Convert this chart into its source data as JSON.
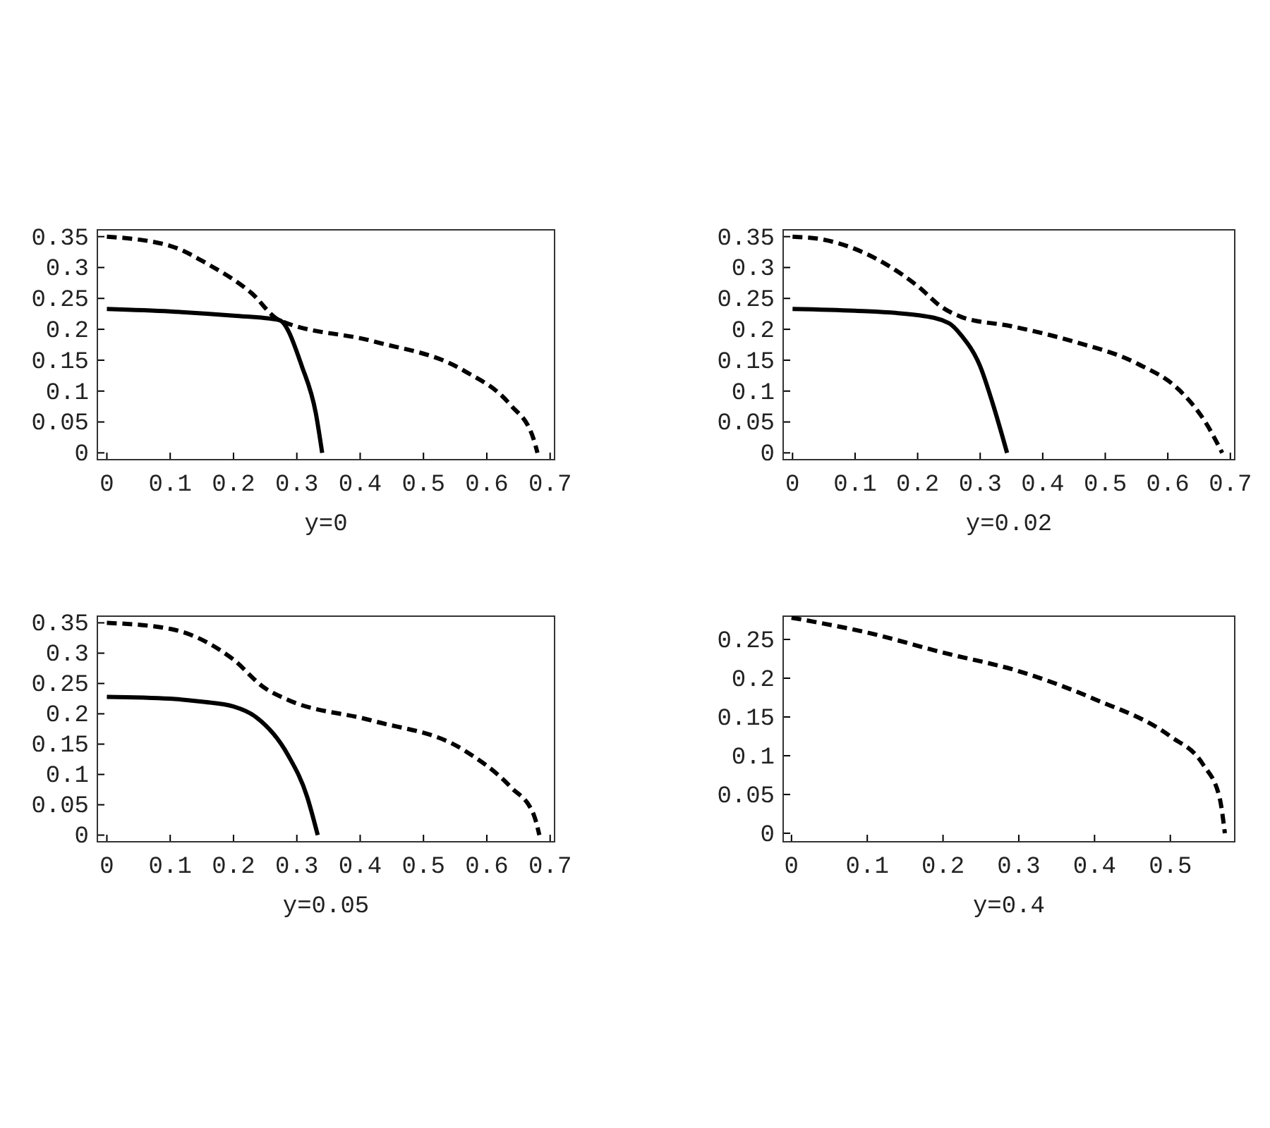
{
  "chart_data": [
    {
      "type": "line",
      "xlabel": "y=0",
      "xlim": [
        -0.015,
        0.707
      ],
      "ylim": [
        -0.011,
        0.361
      ],
      "xticks": [
        0,
        0.1,
        0.2,
        0.3,
        0.4,
        0.5,
        0.6,
        0.7
      ],
      "yticks": [
        0,
        0.05,
        0.1,
        0.15,
        0.2,
        0.25,
        0.3,
        0.35
      ],
      "series": [
        {
          "color": "#000000",
          "line_style": "solid",
          "x": [
            0,
            0.1,
            0.2,
            0.272,
            0.308,
            0.33,
            0.34
          ],
          "values": [
            0.233,
            0.229,
            0.222,
            0.215,
            0.14,
            0.064,
            0
          ]
        },
        {
          "color": "#000000",
          "line_style": "dashed",
          "x": [
            0,
            0.1,
            0.162,
            0.228,
            0.272,
            0.419,
            0.564,
            0.637,
            0.673,
            0.68
          ],
          "values": [
            0.35,
            0.335,
            0.304,
            0.259,
            0.215,
            0.181,
            0.133,
            0.078,
            0.025,
            0
          ]
        }
      ]
    },
    {
      "type": "line",
      "xlabel": "y=0.02",
      "xlim": [
        -0.015,
        0.707
      ],
      "ylim": [
        -0.011,
        0.361
      ],
      "xticks": [
        0,
        0.1,
        0.2,
        0.3,
        0.4,
        0.5,
        0.6,
        0.7
      ],
      "yticks": [
        0,
        0.05,
        0.1,
        0.15,
        0.2,
        0.25,
        0.3,
        0.35
      ],
      "series": [
        {
          "color": "#000000",
          "line_style": "solid",
          "x": [
            0,
            0.1,
            0.2,
            0.25,
            0.27,
            0.3,
            0.32,
            0.343
          ],
          "values": [
            0.233,
            0.23,
            0.223,
            0.21,
            0.19,
            0.14,
            0.08,
            0
          ]
        },
        {
          "color": "#000000",
          "line_style": "dashed",
          "x": [
            0,
            0.05,
            0.1,
            0.15,
            0.2,
            0.24,
            0.27,
            0.35,
            0.45,
            0.55,
            0.62,
            0.66,
            0.687
          ],
          "values": [
            0.35,
            0.345,
            0.33,
            0.305,
            0.27,
            0.235,
            0.22,
            0.205,
            0.18,
            0.145,
            0.1,
            0.05,
            0
          ]
        }
      ]
    },
    {
      "type": "line",
      "xlabel": "y=0.05",
      "xlim": [
        -0.015,
        0.707
      ],
      "ylim": [
        -0.011,
        0.361
      ],
      "xticks": [
        0,
        0.1,
        0.2,
        0.3,
        0.4,
        0.5,
        0.6,
        0.7
      ],
      "yticks": [
        0,
        0.05,
        0.1,
        0.15,
        0.2,
        0.25,
        0.3,
        0.35
      ],
      "series": [
        {
          "color": "#000000",
          "line_style": "solid",
          "x": [
            0,
            0.1,
            0.15,
            0.2,
            0.235,
            0.286,
            0.316,
            0.333
          ],
          "values": [
            0.228,
            0.225,
            0.22,
            0.212,
            0.195,
            0.132,
            0.064,
            0
          ]
        },
        {
          "color": "#000000",
          "line_style": "dashed",
          "x": [
            0,
            0.1,
            0.198,
            0.25,
            0.286,
            0.418,
            0.564,
            0.638,
            0.674,
            0.683
          ],
          "values": [
            0.35,
            0.34,
            0.291,
            0.242,
            0.223,
            0.189,
            0.14,
            0.079,
            0.034,
            0
          ]
        }
      ]
    },
    {
      "type": "line",
      "xlabel": "y=0.4",
      "xlim": [
        -0.011,
        0.585
      ],
      "ylim": [
        -0.011,
        0.28
      ],
      "xticks": [
        0,
        0.1,
        0.2,
        0.3,
        0.4,
        0.5
      ],
      "yticks": [
        0,
        0.05,
        0.1,
        0.15,
        0.2,
        0.25
      ],
      "series": [
        {
          "color": "#000000",
          "line_style": "dashed",
          "x": [
            0,
            0.034,
            0.095,
            0.2,
            0.3,
            0.4,
            0.5,
            0.543,
            0.565,
            0.572
          ],
          "values": [
            0.278,
            0.272,
            0.26,
            0.233,
            0.209,
            0.173,
            0.125,
            0.089,
            0.046,
            0
          ]
        }
      ]
    }
  ]
}
